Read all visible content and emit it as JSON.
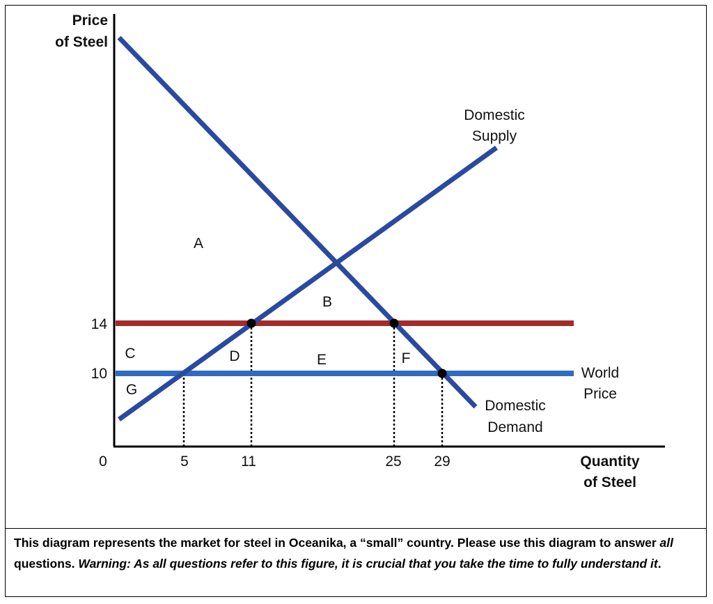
{
  "diagram": {
    "y_axis_label": [
      "Price",
      "of Steel"
    ],
    "x_axis_label": [
      "Quantity",
      "of Steel"
    ],
    "origin_label": "0",
    "price_ticks": [
      "14",
      "10"
    ],
    "quantity_ticks": [
      "5",
      "11",
      "25",
      "29"
    ],
    "regions": [
      "A",
      "B",
      "C",
      "D",
      "E",
      "F",
      "G"
    ],
    "supply_label": [
      "Domestic",
      "Supply"
    ],
    "demand_label": [
      "Domestic",
      "Demand"
    ],
    "world_price_label": [
      "World",
      "Price"
    ],
    "colors": {
      "supply": "#2a4aa0",
      "demand": "#2a4aa0",
      "world_price": "#2f6bbf",
      "tariff_price": "#a52a2a",
      "axes": "#000000"
    }
  },
  "caption": {
    "part1": "This diagram represents the market for steel in Oceanika, a “small” country. Please use this diagram to answer ",
    "part2": "all",
    "part3": " questions. ",
    "part4": "Warning: As all questions refer to this figure, it is crucial that you take the time to fully understand it",
    "part5": "."
  }
}
